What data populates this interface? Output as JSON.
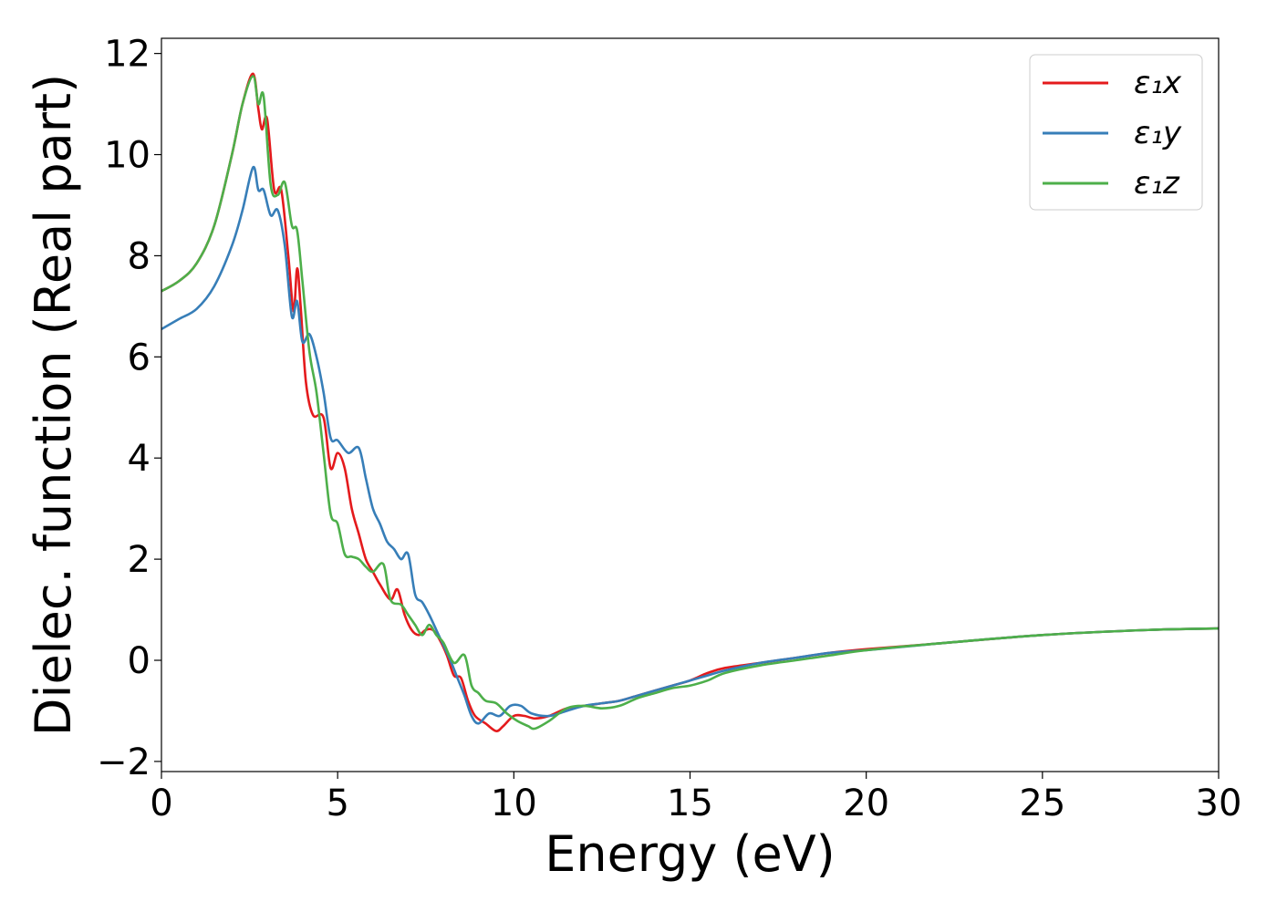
{
  "chart_data": {
    "type": "line",
    "title": "",
    "xlabel": "Energy (eV)",
    "ylabel": "Dielec. function (Real part)",
    "xlim": [
      0,
      30
    ],
    "ylim": [
      -2.2,
      12.3
    ],
    "xticks": [
      0,
      5,
      10,
      15,
      20,
      25,
      30
    ],
    "xtick_labels": [
      "0",
      "5",
      "10",
      "15",
      "20",
      "25",
      "30"
    ],
    "yticks": [
      -2,
      0,
      2,
      4,
      6,
      8,
      10,
      12
    ],
    "ytick_labels": [
      "−2",
      "0",
      "2",
      "4",
      "6",
      "8",
      "10",
      "12"
    ],
    "grid": false,
    "legend_position": "top-right",
    "series": [
      {
        "name": "ε₁x",
        "color": "#e41a1c",
        "x": [
          0,
          0.5,
          1.0,
          1.5,
          2.0,
          2.3,
          2.6,
          2.75,
          2.85,
          3.0,
          3.2,
          3.4,
          3.6,
          3.75,
          3.85,
          3.95,
          4.1,
          4.3,
          4.6,
          4.8,
          5.0,
          5.2,
          5.4,
          5.6,
          5.8,
          6.0,
          6.2,
          6.5,
          6.7,
          6.9,
          7.1,
          7.3,
          7.5,
          7.7,
          7.9,
          8.1,
          8.3,
          8.5,
          8.7,
          8.9,
          9.2,
          9.5,
          9.7,
          10.0,
          10.3,
          10.6,
          11.0,
          11.5,
          12.0,
          12.5,
          13.0,
          13.5,
          14.0,
          14.5,
          15.0,
          15.5,
          16.0,
          17.0,
          18.0,
          19.0,
          20.0,
          22.0,
          25.0,
          28.0,
          30.0
        ],
        "y": [
          7.3,
          7.5,
          7.85,
          8.6,
          10.0,
          11.0,
          11.6,
          10.9,
          10.5,
          10.7,
          9.3,
          9.3,
          8.0,
          6.9,
          7.75,
          7.0,
          5.5,
          4.85,
          4.8,
          3.8,
          4.1,
          3.8,
          3.0,
          2.5,
          2.0,
          1.75,
          1.5,
          1.2,
          1.4,
          0.9,
          0.6,
          0.5,
          0.6,
          0.6,
          0.4,
          0.1,
          -0.3,
          -0.35,
          -0.8,
          -1.1,
          -1.25,
          -1.4,
          -1.3,
          -1.1,
          -1.1,
          -1.15,
          -1.1,
          -0.95,
          -0.9,
          -0.85,
          -0.8,
          -0.7,
          -0.6,
          -0.5,
          -0.4,
          -0.25,
          -0.15,
          -0.05,
          0.05,
          0.15,
          0.22,
          0.33,
          0.5,
          0.6,
          0.63
        ]
      },
      {
        "name": "ε₁y",
        "color": "#377eb8",
        "x": [
          0,
          0.5,
          1.0,
          1.5,
          2.0,
          2.3,
          2.6,
          2.75,
          2.9,
          3.1,
          3.3,
          3.5,
          3.7,
          3.85,
          4.0,
          4.2,
          4.4,
          4.6,
          4.8,
          5.0,
          5.3,
          5.6,
          5.8,
          6.0,
          6.2,
          6.4,
          6.6,
          6.8,
          7.0,
          7.2,
          7.4,
          7.6,
          7.8,
          8.0,
          8.2,
          8.4,
          8.6,
          8.8,
          9.0,
          9.3,
          9.6,
          9.9,
          10.2,
          10.5,
          11.0,
          11.5,
          12.0,
          12.5,
          13.0,
          13.5,
          14.0,
          14.5,
          15.0,
          15.5,
          16.0,
          17.0,
          18.0,
          19.0,
          20.0,
          22.0,
          25.0,
          28.0,
          30.0
        ],
        "y": [
          6.55,
          6.75,
          6.95,
          7.4,
          8.2,
          8.9,
          9.75,
          9.3,
          9.3,
          8.8,
          8.9,
          8.2,
          6.8,
          7.1,
          6.3,
          6.45,
          6.0,
          5.3,
          4.4,
          4.35,
          4.1,
          4.2,
          3.6,
          3.0,
          2.7,
          2.35,
          2.2,
          2.0,
          2.1,
          1.3,
          1.15,
          0.9,
          0.6,
          0.3,
          0.0,
          -0.35,
          -0.7,
          -1.1,
          -1.25,
          -1.05,
          -1.1,
          -0.9,
          -0.9,
          -1.05,
          -1.1,
          -1.0,
          -0.9,
          -0.85,
          -0.8,
          -0.7,
          -0.6,
          -0.5,
          -0.4,
          -0.3,
          -0.2,
          -0.05,
          0.05,
          0.15,
          0.2,
          0.33,
          0.5,
          0.6,
          0.63
        ]
      },
      {
        "name": "ε₁z",
        "color": "#4daf4a",
        "x": [
          0,
          0.5,
          1.0,
          1.5,
          2.0,
          2.3,
          2.6,
          2.75,
          2.9,
          3.1,
          3.3,
          3.5,
          3.7,
          3.85,
          4.0,
          4.2,
          4.4,
          4.6,
          4.8,
          5.0,
          5.2,
          5.4,
          5.6,
          5.8,
          6.0,
          6.3,
          6.5,
          6.8,
          7.0,
          7.2,
          7.4,
          7.6,
          7.8,
          8.0,
          8.3,
          8.6,
          8.8,
          9.0,
          9.2,
          9.5,
          9.8,
          10.1,
          10.4,
          10.6,
          11.0,
          11.5,
          12.0,
          12.5,
          13.0,
          13.5,
          14.0,
          14.5,
          15.0,
          15.5,
          16.0,
          17.0,
          18.0,
          19.0,
          20.0,
          22.0,
          25.0,
          28.0,
          30.0
        ],
        "y": [
          7.3,
          7.5,
          7.85,
          8.6,
          10.0,
          11.0,
          11.55,
          11.0,
          11.15,
          9.4,
          9.2,
          9.45,
          8.6,
          8.5,
          7.5,
          6.1,
          5.3,
          4.1,
          2.9,
          2.7,
          2.1,
          2.05,
          2.0,
          1.85,
          1.75,
          1.9,
          1.2,
          1.1,
          0.9,
          0.7,
          0.5,
          0.7,
          0.5,
          0.35,
          -0.05,
          0.1,
          -0.5,
          -0.65,
          -0.8,
          -0.85,
          -1.05,
          -1.2,
          -1.3,
          -1.35,
          -1.2,
          -0.95,
          -0.9,
          -0.95,
          -0.9,
          -0.75,
          -0.65,
          -0.55,
          -0.5,
          -0.4,
          -0.25,
          -0.1,
          0.0,
          0.1,
          0.2,
          0.33,
          0.5,
          0.6,
          0.63
        ]
      }
    ]
  }
}
